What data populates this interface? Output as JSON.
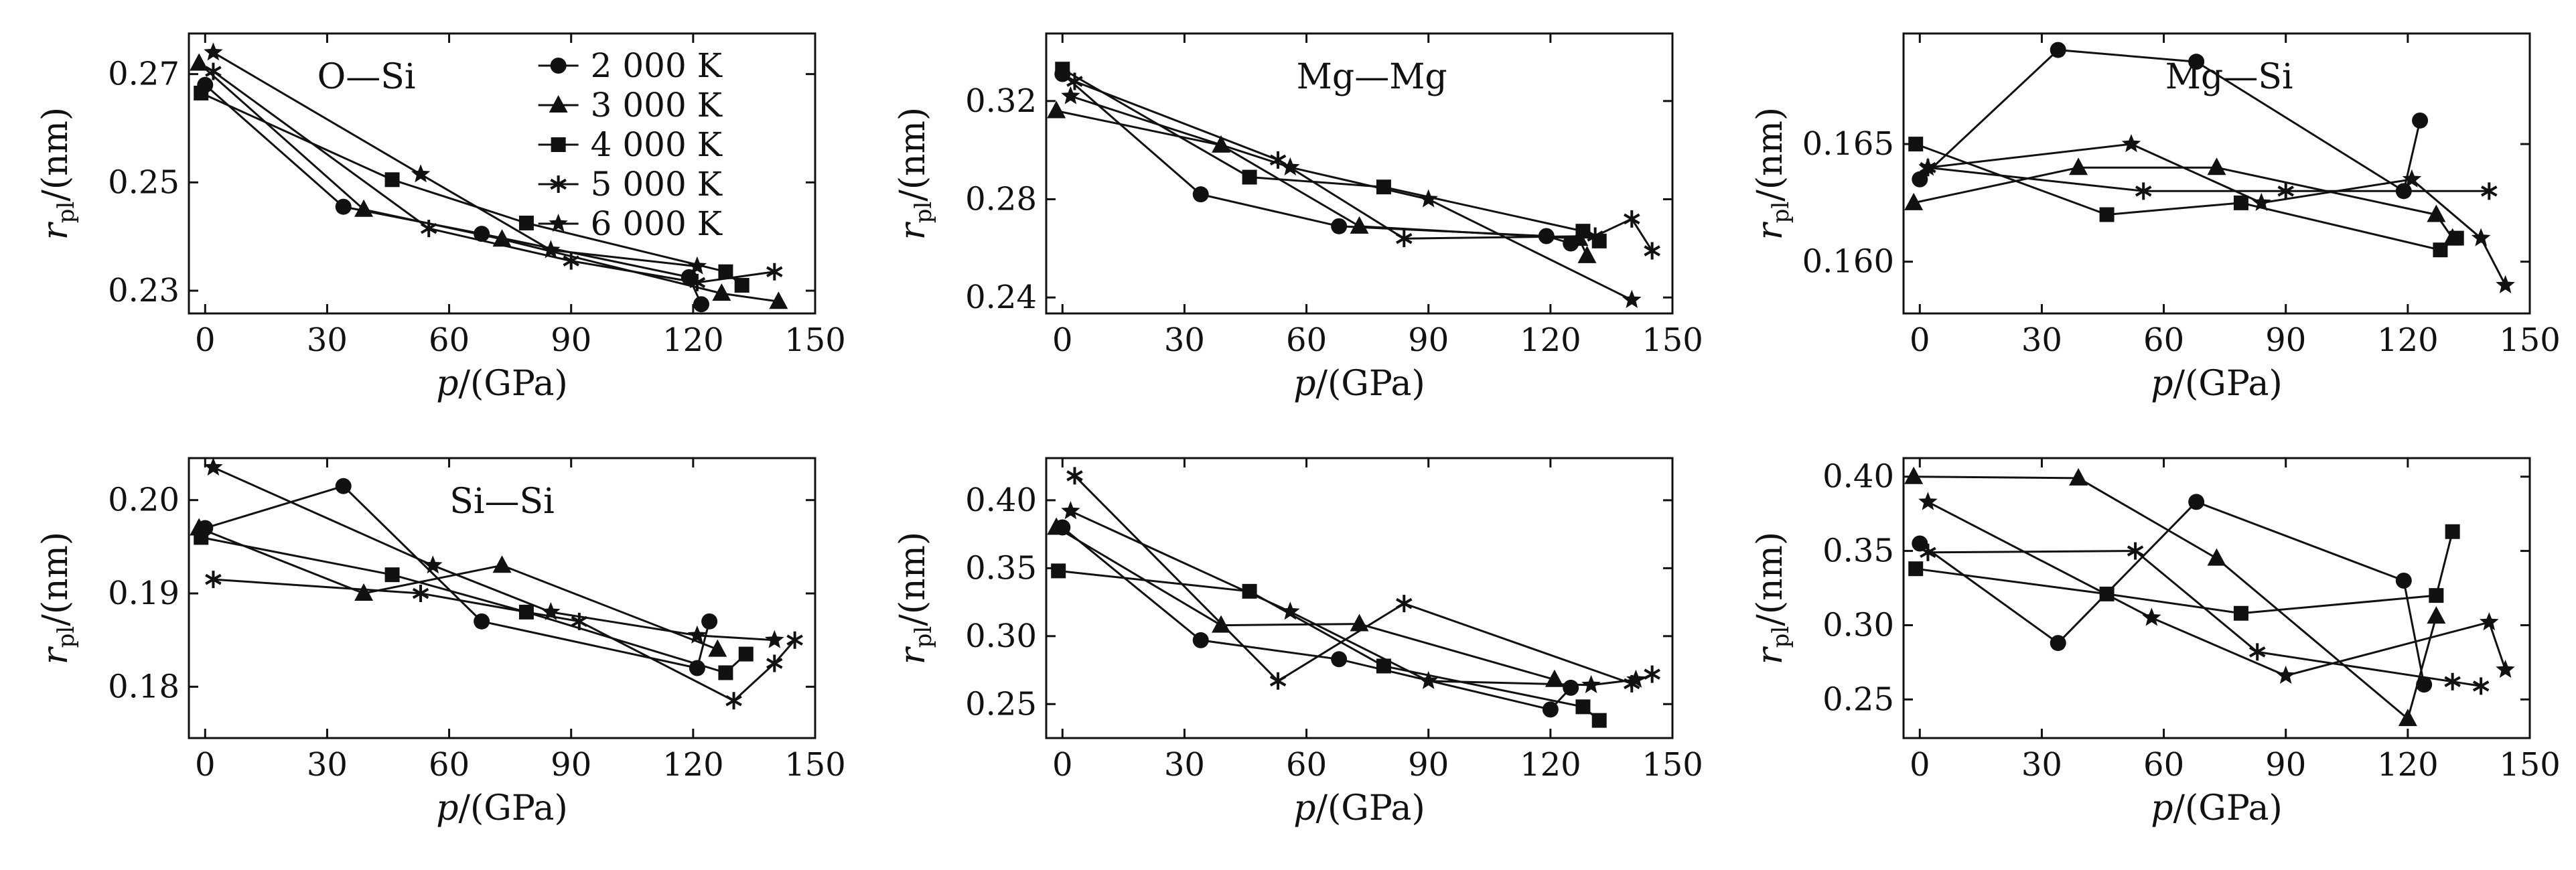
{
  "chart_data": [
    {
      "type": "line",
      "annotation": "O—Si",
      "xlabel": "p/(GPa)",
      "ylabel": "r_pl/(nm)",
      "xlim": [
        -4,
        150
      ],
      "xticks": [
        0,
        30,
        60,
        90,
        120,
        150
      ],
      "ylim": [
        0.2258,
        0.2775
      ],
      "yticks": [
        0.23,
        0.25,
        0.27
      ],
      "ytick_decimals": 2,
      "legend": {
        "placement": "top-right",
        "entries": [
          "2 000 K",
          "3 000 K",
          "4 000 K",
          "5 000 K",
          "6 000 K"
        ]
      },
      "series": [
        {
          "name": "2 000 K",
          "marker": "circle",
          "x": [
            0,
            34,
            68,
            119,
            122
          ],
          "y": [
            0.268,
            0.2455,
            0.2405,
            0.2325,
            0.2275
          ]
        },
        {
          "name": "3 000 K",
          "marker": "triangle",
          "x": [
            -1.5,
            39,
            73,
            127,
            141
          ],
          "y": [
            0.272,
            0.245,
            0.2395,
            0.2295,
            0.228
          ]
        },
        {
          "name": "4 000 K",
          "marker": "square",
          "x": [
            -1,
            46,
            79,
            128,
            132
          ],
          "y": [
            0.2665,
            0.2505,
            0.2425,
            0.2335,
            0.231
          ]
        },
        {
          "name": "5 000 K",
          "marker": "asterisk",
          "x": [
            2,
            55,
            90,
            121,
            140
          ],
          "y": [
            0.2705,
            0.2415,
            0.2355,
            0.2315,
            0.2335
          ]
        },
        {
          "name": "6 000 K",
          "marker": "star",
          "x": [
            2,
            53,
            85,
            121
          ],
          "y": [
            0.274,
            0.2515,
            0.2375,
            0.2345
          ]
        }
      ]
    },
    {
      "type": "line",
      "annotation": "Mg—Mg",
      "xlabel": "p/(GPa)",
      "ylabel": "r_pl/(nm)",
      "xlim": [
        -4,
        150
      ],
      "xticks": [
        0,
        30,
        60,
        90,
        120,
        150
      ],
      "ylim": [
        0.2335,
        0.3475
      ],
      "yticks": [
        0.24,
        0.28,
        0.32
      ],
      "ytick_decimals": 2,
      "series": [
        {
          "name": "2 000 K",
          "marker": "circle",
          "x": [
            0,
            34,
            68,
            119,
            125
          ],
          "y": [
            0.331,
            0.282,
            0.269,
            0.265,
            0.262
          ]
        },
        {
          "name": "3 000 K",
          "marker": "triangle",
          "x": [
            -1.5,
            39,
            73,
            127,
            129
          ],
          "y": [
            0.316,
            0.302,
            0.269,
            0.264,
            0.257
          ]
        },
        {
          "name": "4 000 K",
          "marker": "square",
          "x": [
            0,
            46,
            79,
            128,
            132
          ],
          "y": [
            0.333,
            0.289,
            0.285,
            0.267,
            0.263
          ]
        },
        {
          "name": "5 000 K",
          "marker": "asterisk",
          "x": [
            3,
            53,
            84,
            131,
            140,
            145
          ],
          "y": [
            0.328,
            0.296,
            0.264,
            0.265,
            0.272,
            0.259
          ]
        },
        {
          "name": "6 000 K",
          "marker": "star",
          "x": [
            2,
            56,
            90,
            140
          ],
          "y": [
            0.322,
            0.293,
            0.28,
            0.239
          ]
        }
      ]
    },
    {
      "type": "line",
      "annotation": "Mg—Si",
      "xlabel": "p/(GPa)",
      "ylabel": "r_pl/(nm)",
      "xlim": [
        -4,
        150
      ],
      "xticks": [
        0,
        30,
        60,
        90,
        120,
        150
      ],
      "ylim": [
        0.1578,
        0.1697
      ],
      "yticks": [
        0.16,
        0.165
      ],
      "ytick_decimals": 3,
      "series": [
        {
          "name": "2 000 K",
          "marker": "circle",
          "x": [
            0,
            34,
            68,
            119,
            123
          ],
          "y": [
            0.1635,
            0.169,
            0.1685,
            0.163,
            0.166
          ]
        },
        {
          "name": "3 000 K",
          "marker": "triangle",
          "x": [
            -1.5,
            39,
            73,
            127,
            131
          ],
          "y": [
            0.1625,
            0.164,
            0.164,
            0.162,
            0.161
          ]
        },
        {
          "name": "4 000 K",
          "marker": "square",
          "x": [
            -1,
            46,
            79,
            128,
            132
          ],
          "y": [
            0.165,
            0.162,
            0.1625,
            0.1605,
            0.161
          ]
        },
        {
          "name": "5 000 K",
          "marker": "asterisk",
          "x": [
            2,
            55,
            90,
            140
          ],
          "y": [
            0.164,
            0.163,
            0.163,
            0.163
          ]
        },
        {
          "name": "6 000 K",
          "marker": "star",
          "x": [
            2,
            52,
            84,
            121,
            138,
            144
          ],
          "y": [
            0.164,
            0.165,
            0.1625,
            0.1635,
            0.161,
            0.159
          ]
        }
      ]
    },
    {
      "type": "line",
      "annotation": "Si—Si",
      "xlabel": "p/(GPa)",
      "ylabel": "r_pl/(nm)",
      "xlim": [
        -4,
        150
      ],
      "xticks": [
        0,
        30,
        60,
        90,
        120,
        150
      ],
      "ylim": [
        0.1745,
        0.2045
      ],
      "yticks": [
        0.18,
        0.19,
        0.2
      ],
      "ytick_decimals": 2,
      "series": [
        {
          "name": "2 000 K",
          "marker": "circle",
          "x": [
            0,
            34,
            68,
            121,
            124
          ],
          "y": [
            0.197,
            0.2015,
            0.187,
            0.182,
            0.187
          ]
        },
        {
          "name": "3 000 K",
          "marker": "triangle",
          "x": [
            -1.5,
            39,
            73,
            126
          ],
          "y": [
            0.197,
            0.19,
            0.193,
            0.184
          ]
        },
        {
          "name": "4 000 K",
          "marker": "square",
          "x": [
            -1,
            46,
            79,
            128,
            133
          ],
          "y": [
            0.196,
            0.192,
            0.188,
            0.1815,
            0.1835
          ]
        },
        {
          "name": "5 000 K",
          "marker": "asterisk",
          "x": [
            2,
            53,
            92,
            130,
            140,
            145
          ],
          "y": [
            0.1915,
            0.19,
            0.187,
            0.1785,
            0.1825,
            0.185
          ]
        },
        {
          "name": "6 000 K",
          "marker": "star",
          "x": [
            2,
            56,
            85,
            121,
            140
          ],
          "y": [
            0.2035,
            0.193,
            0.188,
            0.1855,
            0.185
          ]
        }
      ]
    },
    {
      "type": "line",
      "annotation": "",
      "xlabel": "p/(GPa)",
      "ylabel": "r_pl/(nm)",
      "xlim": [
        -4,
        150
      ],
      "xticks": [
        0,
        30,
        60,
        90,
        120,
        150
      ],
      "ylim": [
        0.225,
        0.431
      ],
      "yticks": [
        0.25,
        0.3,
        0.35,
        0.4
      ],
      "ytick_decimals": 2,
      "series": [
        {
          "name": "2 000 K",
          "marker": "circle",
          "x": [
            0,
            34,
            68,
            120,
            125
          ],
          "y": [
            0.38,
            0.297,
            0.283,
            0.246,
            0.262
          ]
        },
        {
          "name": "3 000 K",
          "marker": "triangle",
          "x": [
            -1.5,
            39,
            73,
            121
          ],
          "y": [
            0.38,
            0.308,
            0.309,
            0.268
          ]
        },
        {
          "name": "4 000 K",
          "marker": "square",
          "x": [
            -1,
            46,
            79,
            128,
            132
          ],
          "y": [
            0.348,
            0.333,
            0.278,
            0.248,
            0.238
          ]
        },
        {
          "name": "5 000 K",
          "marker": "asterisk",
          "x": [
            3,
            53,
            84,
            140,
            145
          ],
          "y": [
            0.418,
            0.267,
            0.324,
            0.265,
            0.272
          ]
        },
        {
          "name": "6 000 K",
          "marker": "star",
          "x": [
            2,
            56,
            90,
            130,
            141
          ],
          "y": [
            0.392,
            0.318,
            0.267,
            0.264,
            0.268
          ]
        }
      ]
    },
    {
      "type": "line",
      "annotation": "",
      "xlabel": "p/(GPa)",
      "ylabel": "r_pl/(nm)",
      "xlim": [
        -4,
        150
      ],
      "xticks": [
        0,
        30,
        60,
        90,
        120,
        150
      ],
      "ylim": [
        0.224,
        0.4125
      ],
      "yticks": [
        0.25,
        0.3,
        0.35,
        0.4
      ],
      "ytick_decimals": 2,
      "series": [
        {
          "name": "2 000 K",
          "marker": "circle",
          "x": [
            0,
            34,
            68,
            119,
            124
          ],
          "y": [
            0.355,
            0.288,
            0.383,
            0.33,
            0.26
          ]
        },
        {
          "name": "3 000 K",
          "marker": "triangle",
          "x": [
            -1.5,
            39,
            73,
            120,
            127
          ],
          "y": [
            0.4,
            0.399,
            0.345,
            0.237,
            0.306
          ]
        },
        {
          "name": "4 000 K",
          "marker": "square",
          "x": [
            -1,
            46,
            79,
            127,
            131
          ],
          "y": [
            0.338,
            0.321,
            0.308,
            0.32,
            0.363
          ]
        },
        {
          "name": "5 000 K",
          "marker": "asterisk",
          "x": [
            2,
            53,
            83,
            131,
            138
          ],
          "y": [
            0.349,
            0.35,
            0.282,
            0.262,
            0.259
          ]
        },
        {
          "name": "6 000 K",
          "marker": "star",
          "x": [
            2,
            57,
            90,
            140,
            144
          ],
          "y": [
            0.383,
            0.305,
            0.266,
            0.302,
            0.27
          ]
        }
      ]
    }
  ]
}
